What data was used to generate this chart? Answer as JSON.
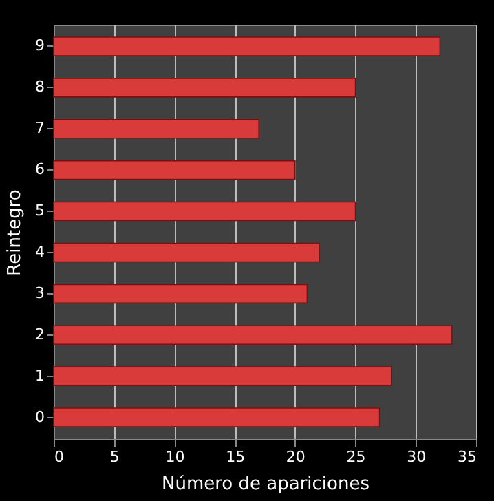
{
  "chart_data": {
    "type": "bar",
    "orientation": "horizontal",
    "xlabel": "Número  de apariciones",
    "ylabel": "Reintegro",
    "categories": [
      "9",
      "8",
      "7",
      "6",
      "5",
      "4",
      "3",
      "2",
      "1",
      "0"
    ],
    "values": [
      32,
      25,
      17,
      20,
      25,
      22,
      21,
      33,
      28,
      27
    ],
    "color": "#d93a3a",
    "xlim": [
      0,
      35
    ],
    "xticks": [
      0,
      5,
      10,
      15,
      20,
      25,
      30,
      35
    ],
    "grid": "x"
  }
}
